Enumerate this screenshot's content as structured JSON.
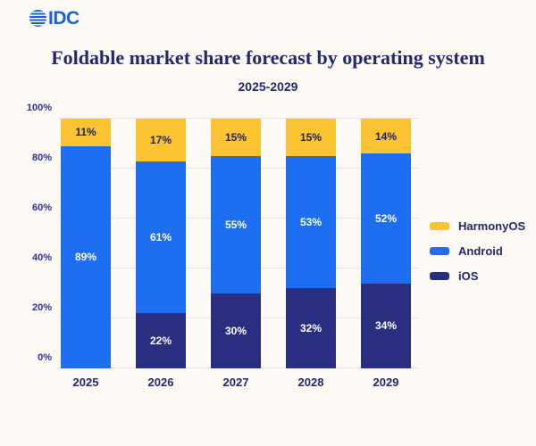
{
  "logo": {
    "text": "IDC",
    "color": "#1A5FE8"
  },
  "header": {
    "title": "Foldable market share forecast by operating system",
    "subtitle": "2025-2029"
  },
  "colors": {
    "background": "#FDF9F4",
    "title_navy": "#222772",
    "gridline": "#EAE5E4"
  },
  "chart_data": {
    "type": "bar",
    "stacked": true,
    "title": "Foldable market share forecast by operating system",
    "subtitle": "2025-2029",
    "categories": [
      "2025",
      "2026",
      "2027",
      "2028",
      "2029"
    ],
    "series": [
      {
        "name": "iOS",
        "color": "#292E80",
        "label_color": "#FFFFFF",
        "values": [
          0,
          22,
          30,
          32,
          34
        ]
      },
      {
        "name": "Android",
        "color": "#1D6EF0",
        "label_color": "#FFFFFF",
        "values": [
          89,
          61,
          55,
          53,
          52
        ]
      },
      {
        "name": "HarmonyOS",
        "color": "#FCC432",
        "label_color": "#1C2150",
        "values": [
          11,
          17,
          15,
          15,
          14
        ]
      }
    ],
    "value_suffix": "%",
    "y_ticks": [
      0,
      20,
      40,
      60,
      80,
      100
    ],
    "y_tick_suffix": "%",
    "ylim": [
      0,
      100
    ],
    "grid": true,
    "legend_position": "right",
    "legend_order": [
      "HarmonyOS",
      "Android",
      "iOS"
    ]
  }
}
